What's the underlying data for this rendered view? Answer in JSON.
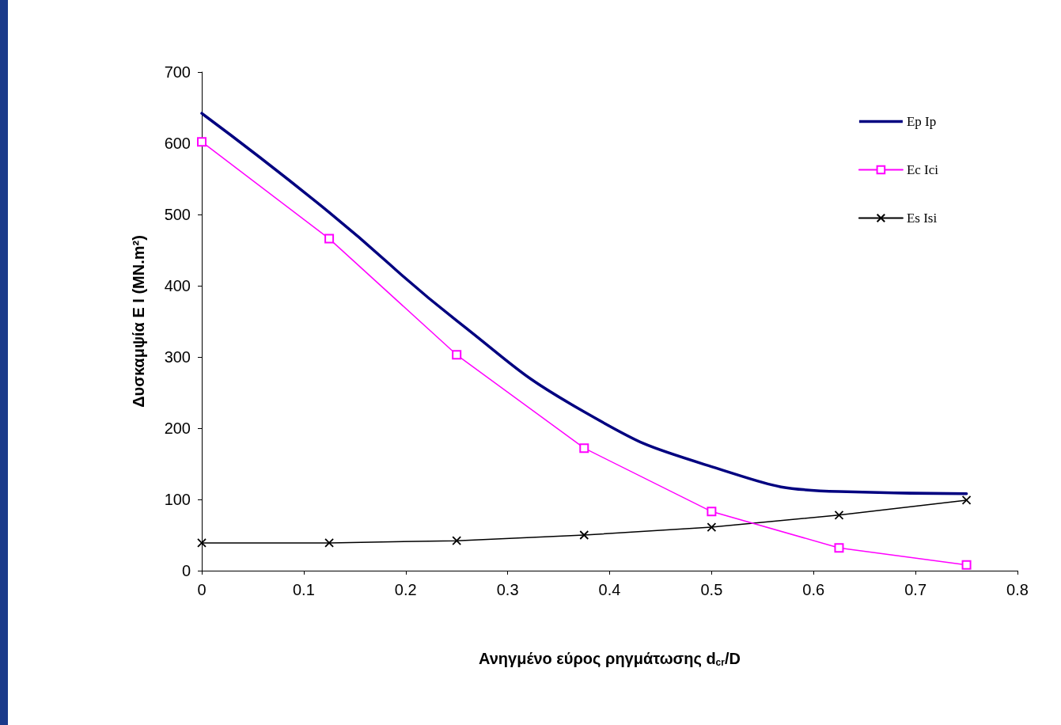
{
  "chart_data": {
    "type": "line",
    "xlabel": "Ανηγμένο εύρος ρηγμάτωσης d$_{cr}$/D",
    "ylabel": "Δυσκαμψία E I (MN.m²)",
    "x": [
      0,
      0.125,
      0.25,
      0.375,
      0.5,
      0.625,
      0.75
    ],
    "series": [
      {
        "name": "Ep Ip",
        "color": "#000080",
        "marker": "none",
        "values": [
          642,
          503,
          351,
          223,
          146,
          111,
          108
        ]
      },
      {
        "name": "Ec Ici",
        "color": "#ff00ff",
        "marker": "square",
        "values": [
          602,
          466,
          303,
          172,
          83,
          32,
          8
        ]
      },
      {
        "name": "Es Isi",
        "color": "#000000",
        "marker": "cross",
        "values": [
          39,
          39,
          42,
          50,
          61,
          78,
          99
        ]
      }
    ],
    "xlim": [
      0,
      0.8
    ],
    "xticks": [
      0,
      0.1,
      0.2,
      0.3,
      0.4,
      0.5,
      0.6,
      0.7,
      0.8
    ],
    "ylim": [
      0,
      700
    ],
    "yticks": [
      0,
      100,
      200,
      300,
      400,
      500,
      600,
      700
    ],
    "grid": false,
    "legend": "top right"
  }
}
